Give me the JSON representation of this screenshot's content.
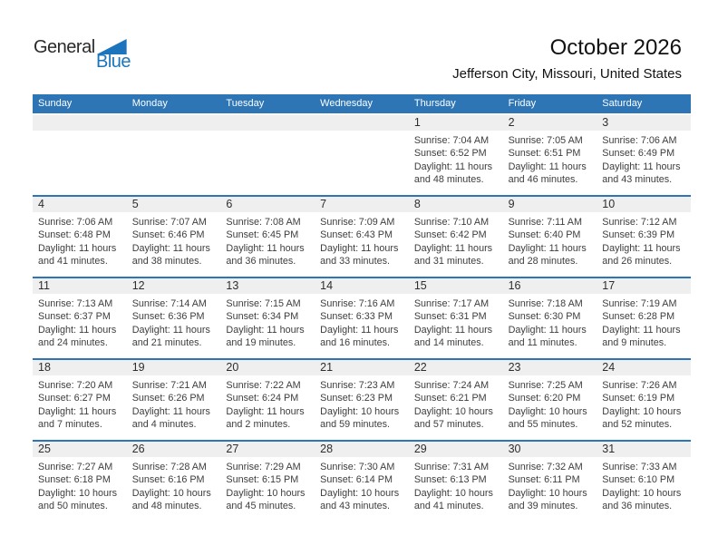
{
  "logo": {
    "word_top": "General",
    "word_bottom": "Blue"
  },
  "title": "October 2026",
  "subtitle": "Jefferson City, Missouri, United States",
  "weekday_headers": [
    "Sunday",
    "Monday",
    "Tuesday",
    "Wednesday",
    "Thursday",
    "Friday",
    "Saturday"
  ],
  "labels": {
    "sunrise": "Sunrise:",
    "sunset": "Sunset:",
    "daylight": "Daylight:"
  },
  "colors": {
    "header_blue": "#2E75B6",
    "separator_blue": "#2E75B6",
    "date_band_gray": "#EFEFEF",
    "logo_blue": "#1C75BC"
  },
  "weeks": [
    [
      null,
      null,
      null,
      null,
      {
        "day": "1",
        "sunrise": "7:04 AM",
        "sunset": "6:52 PM",
        "daylight": "11 hours and 48 minutes."
      },
      {
        "day": "2",
        "sunrise": "7:05 AM",
        "sunset": "6:51 PM",
        "daylight": "11 hours and 46 minutes."
      },
      {
        "day": "3",
        "sunrise": "7:06 AM",
        "sunset": "6:49 PM",
        "daylight": "11 hours and 43 minutes."
      }
    ],
    [
      {
        "day": "4",
        "sunrise": "7:06 AM",
        "sunset": "6:48 PM",
        "daylight": "11 hours and 41 minutes."
      },
      {
        "day": "5",
        "sunrise": "7:07 AM",
        "sunset": "6:46 PM",
        "daylight": "11 hours and 38 minutes."
      },
      {
        "day": "6",
        "sunrise": "7:08 AM",
        "sunset": "6:45 PM",
        "daylight": "11 hours and 36 minutes."
      },
      {
        "day": "7",
        "sunrise": "7:09 AM",
        "sunset": "6:43 PM",
        "daylight": "11 hours and 33 minutes."
      },
      {
        "day": "8",
        "sunrise": "7:10 AM",
        "sunset": "6:42 PM",
        "daylight": "11 hours and 31 minutes."
      },
      {
        "day": "9",
        "sunrise": "7:11 AM",
        "sunset": "6:40 PM",
        "daylight": "11 hours and 28 minutes."
      },
      {
        "day": "10",
        "sunrise": "7:12 AM",
        "sunset": "6:39 PM",
        "daylight": "11 hours and 26 minutes."
      }
    ],
    [
      {
        "day": "11",
        "sunrise": "7:13 AM",
        "sunset": "6:37 PM",
        "daylight": "11 hours and 24 minutes."
      },
      {
        "day": "12",
        "sunrise": "7:14 AM",
        "sunset": "6:36 PM",
        "daylight": "11 hours and 21 minutes."
      },
      {
        "day": "13",
        "sunrise": "7:15 AM",
        "sunset": "6:34 PM",
        "daylight": "11 hours and 19 minutes."
      },
      {
        "day": "14",
        "sunrise": "7:16 AM",
        "sunset": "6:33 PM",
        "daylight": "11 hours and 16 minutes."
      },
      {
        "day": "15",
        "sunrise": "7:17 AM",
        "sunset": "6:31 PM",
        "daylight": "11 hours and 14 minutes."
      },
      {
        "day": "16",
        "sunrise": "7:18 AM",
        "sunset": "6:30 PM",
        "daylight": "11 hours and 11 minutes."
      },
      {
        "day": "17",
        "sunrise": "7:19 AM",
        "sunset": "6:28 PM",
        "daylight": "11 hours and 9 minutes."
      }
    ],
    [
      {
        "day": "18",
        "sunrise": "7:20 AM",
        "sunset": "6:27 PM",
        "daylight": "11 hours and 7 minutes."
      },
      {
        "day": "19",
        "sunrise": "7:21 AM",
        "sunset": "6:26 PM",
        "daylight": "11 hours and 4 minutes."
      },
      {
        "day": "20",
        "sunrise": "7:22 AM",
        "sunset": "6:24 PM",
        "daylight": "11 hours and 2 minutes."
      },
      {
        "day": "21",
        "sunrise": "7:23 AM",
        "sunset": "6:23 PM",
        "daylight": "10 hours and 59 minutes."
      },
      {
        "day": "22",
        "sunrise": "7:24 AM",
        "sunset": "6:21 PM",
        "daylight": "10 hours and 57 minutes."
      },
      {
        "day": "23",
        "sunrise": "7:25 AM",
        "sunset": "6:20 PM",
        "daylight": "10 hours and 55 minutes."
      },
      {
        "day": "24",
        "sunrise": "7:26 AM",
        "sunset": "6:19 PM",
        "daylight": "10 hours and 52 minutes."
      }
    ],
    [
      {
        "day": "25",
        "sunrise": "7:27 AM",
        "sunset": "6:18 PM",
        "daylight": "10 hours and 50 minutes."
      },
      {
        "day": "26",
        "sunrise": "7:28 AM",
        "sunset": "6:16 PM",
        "daylight": "10 hours and 48 minutes."
      },
      {
        "day": "27",
        "sunrise": "7:29 AM",
        "sunset": "6:15 PM",
        "daylight": "10 hours and 45 minutes."
      },
      {
        "day": "28",
        "sunrise": "7:30 AM",
        "sunset": "6:14 PM",
        "daylight": "10 hours and 43 minutes."
      },
      {
        "day": "29",
        "sunrise": "7:31 AM",
        "sunset": "6:13 PM",
        "daylight": "10 hours and 41 minutes."
      },
      {
        "day": "30",
        "sunrise": "7:32 AM",
        "sunset": "6:11 PM",
        "daylight": "10 hours and 39 minutes."
      },
      {
        "day": "31",
        "sunrise": "7:33 AM",
        "sunset": "6:10 PM",
        "daylight": "10 hours and 36 minutes."
      }
    ]
  ]
}
